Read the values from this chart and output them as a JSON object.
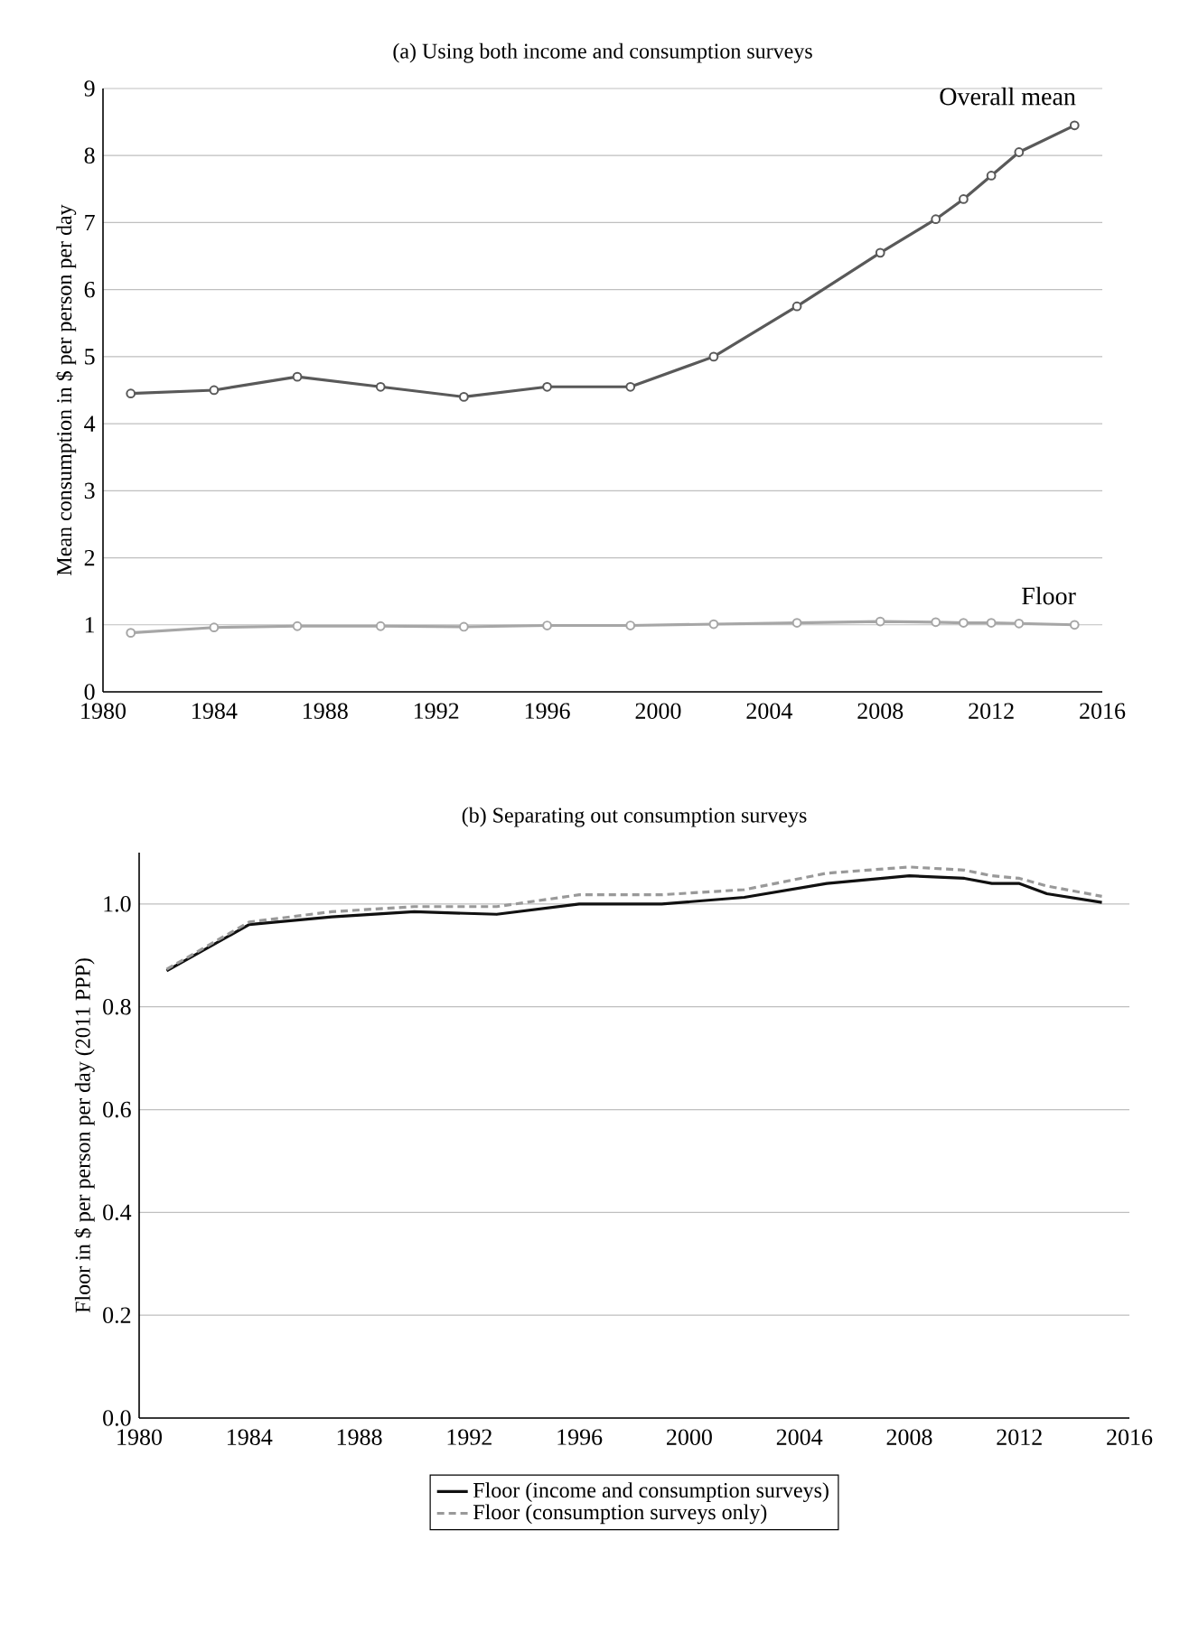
{
  "chart_data": [
    {
      "type": "line",
      "title": "(a) Using both income and consumption surveys",
      "ylabel": "Mean consumption in $ per person per day",
      "x": [
        1981,
        1984,
        1987,
        1990,
        1993,
        1996,
        1999,
        2002,
        2005,
        2008,
        2010,
        2011,
        2012,
        2013,
        2015
      ],
      "series": [
        {
          "name": "Overall mean",
          "color": "#595959",
          "values": [
            4.45,
            4.5,
            4.7,
            4.55,
            4.4,
            4.55,
            4.55,
            5.0,
            5.75,
            6.55,
            7.05,
            7.35,
            7.7,
            8.05,
            8.45
          ]
        },
        {
          "name": "Floor",
          "color": "#a6a6a6",
          "values": [
            0.88,
            0.96,
            0.98,
            0.98,
            0.97,
            0.99,
            0.99,
            1.01,
            1.03,
            1.05,
            1.04,
            1.03,
            1.03,
            1.02,
            1.0
          ]
        }
      ],
      "xlim": [
        1980,
        2016
      ],
      "xticks": [
        1980,
        1984,
        1988,
        1992,
        1996,
        2000,
        2004,
        2008,
        2012,
        2016
      ],
      "ylim": [
        0,
        9
      ],
      "yticks": [
        0,
        1,
        2,
        3,
        4,
        5,
        6,
        7,
        8,
        9
      ],
      "grid": "y",
      "marker": "circle"
    },
    {
      "type": "line",
      "title": "(b) Separating out consumption surveys",
      "ylabel": "Floor in $ per person per day (2011 PPP)",
      "x": [
        1981,
        1984,
        1987,
        1990,
        1993,
        1996,
        1999,
        2002,
        2005,
        2008,
        2010,
        2011,
        2012,
        2013,
        2015
      ],
      "series": [
        {
          "name": "Floor (income and consumption surveys)",
          "color": "#111111",
          "line_style": "solid",
          "values": [
            0.87,
            0.96,
            0.975,
            0.985,
            0.98,
            1.0,
            1.0,
            1.013,
            1.04,
            1.055,
            1.05,
            1.04,
            1.04,
            1.02,
            1.003
          ]
        },
        {
          "name": "Floor (consumption surveys only)",
          "color": "#999999",
          "line_style": "dashed",
          "values": [
            0.873,
            0.965,
            0.985,
            0.995,
            0.995,
            1.018,
            1.018,
            1.028,
            1.06,
            1.072,
            1.066,
            1.055,
            1.05,
            1.035,
            1.015
          ]
        }
      ],
      "xlim": [
        1980,
        2016
      ],
      "xticks": [
        1980,
        1984,
        1988,
        1992,
        1996,
        2000,
        2004,
        2008,
        2012,
        2016
      ],
      "ylim": [
        0,
        1.1
      ],
      "yticks": [
        {
          "value": 0,
          "label": "0.0"
        },
        0.2,
        0.4,
        0.6,
        0.8,
        {
          "value": 1,
          "label": "1.0"
        }
      ],
      "grid": "y",
      "legend": "bottom"
    }
  ]
}
